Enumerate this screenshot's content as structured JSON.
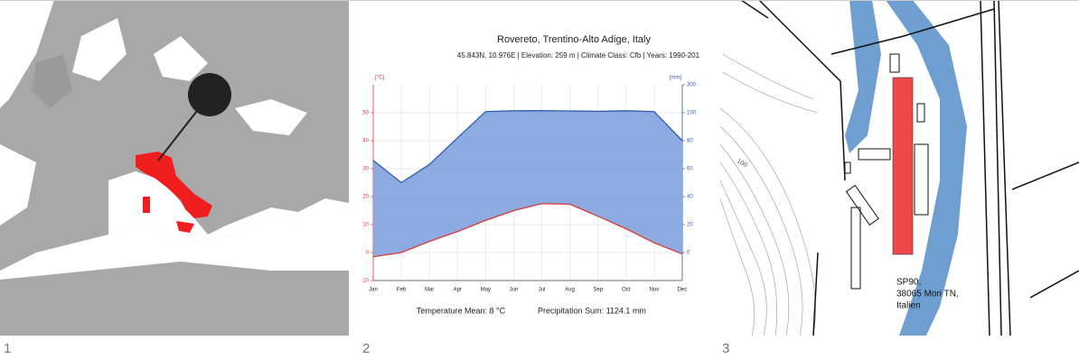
{
  "panel_labels": [
    "1",
    "2",
    "3"
  ],
  "chart_data": {
    "type": "line",
    "title": "Rovereto, Trentino-Alto Adige, Italy",
    "subtitle": "45.843N, 10.976E | Elevation: 259 m | Climate Class: Cfb | Years: 1990-201",
    "ylabel": "[°C]",
    "y2label": "[mm]",
    "categories": [
      "Jan",
      "Feb",
      "Mar",
      "Apr",
      "May",
      "Jun",
      "Jul",
      "Aug",
      "Sep",
      "Oct",
      "Nov",
      "Dec"
    ],
    "series": [
      {
        "color": "#d93a3a",
        "values": [
          -1.5,
          0,
          4,
          7.5,
          11.5,
          15,
          17.5,
          17.3,
          13,
          8.5,
          3.5,
          -0.5
        ]
      },
      {
        "color": "#2e5db3",
        "axis": "y2",
        "values": [
          66,
          50,
          63,
          82,
          108,
          114,
          115,
          113,
          110,
          114,
          108,
          80
        ]
      }
    ],
    "fill_color": "#87a5df",
    "ylim": [
      -10,
      60
    ],
    "yticks": [
      -10,
      0,
      10,
      20,
      30,
      40,
      50
    ],
    "y2lim": [
      -20,
      300
    ],
    "y2ticks": [
      0,
      20,
      40,
      60,
      80,
      100,
      300
    ],
    "grid": true,
    "annotations": [
      "Temperature Mean: 8 °C",
      "Precipitation Sum: 1124.1 mm"
    ]
  },
  "site_map": {
    "address": [
      "SP90,",
      "38065 Mori TN,",
      "Italien"
    ],
    "contour_label": "100"
  }
}
